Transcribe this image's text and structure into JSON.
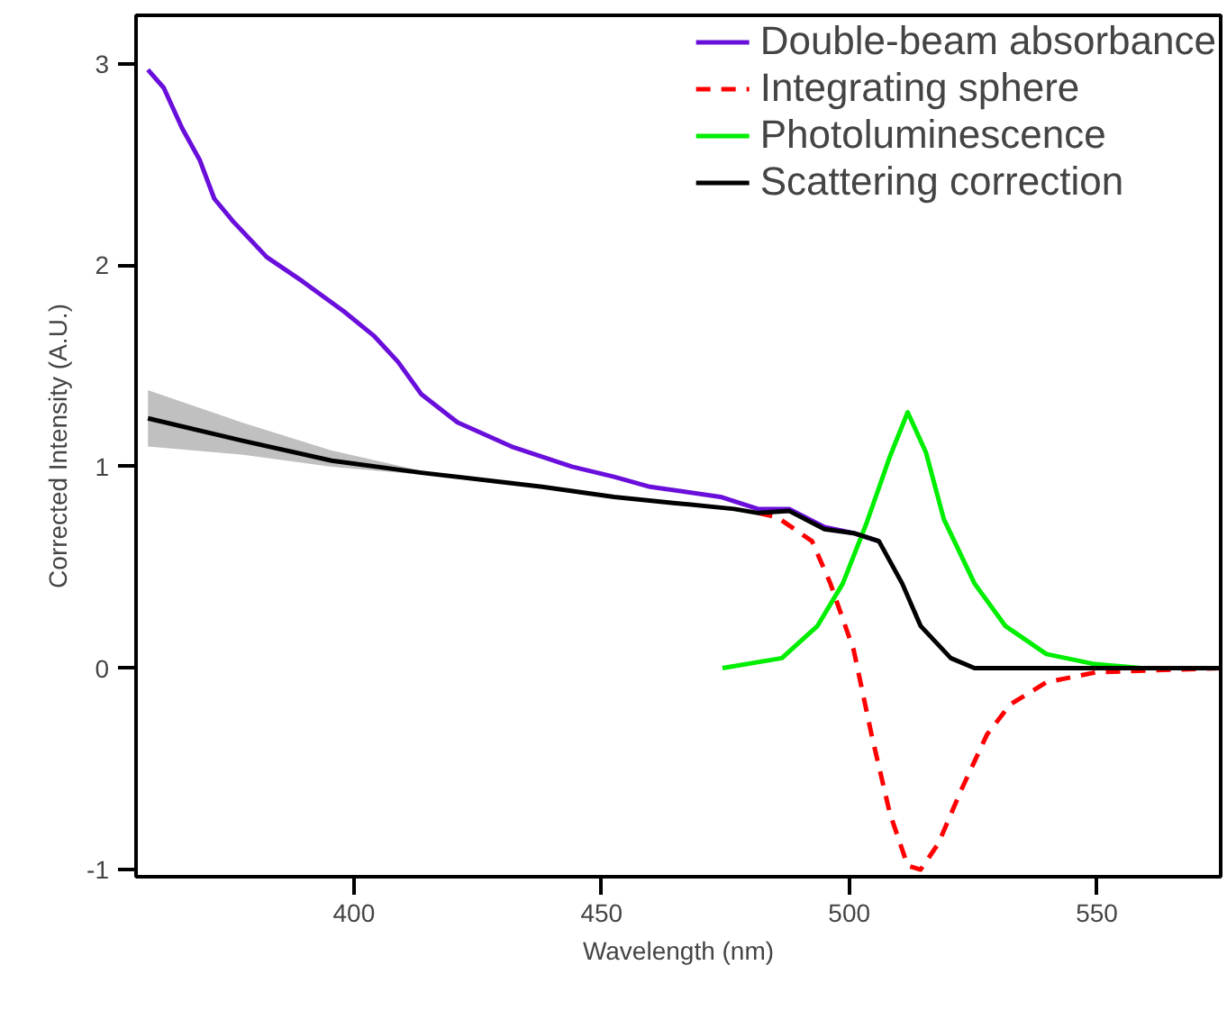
{
  "chart_data": {
    "type": "line",
    "xlabel": "Wavelength (nm)",
    "ylabel": "Corrected Intensity (A.U.)",
    "xlim": [
      356,
      575
    ],
    "ylim": [
      -1.035,
      3.24
    ],
    "xticks": [
      400,
      450,
      500,
      550
    ],
    "yticks": [
      -1,
      0,
      1,
      2,
      3
    ],
    "grid": false,
    "legend": "top right",
    "marker": "none",
    "series": [
      {
        "name": "Double-beam absorbance",
        "color": "#6a0fdb",
        "line_style": "solid",
        "x": [
          358.4,
          361.6,
          365.3,
          368.9,
          371.8,
          375.5,
          382.4,
          389.6,
          398,
          404,
          408.9,
          413.6,
          420.9,
          431.8,
          444,
          452.5,
          459.8,
          474,
          481.6,
          487.9,
          495,
          500.9,
          506
        ],
        "values": [
          2.97,
          2.88,
          2.68,
          2.52,
          2.33,
          2.22,
          2.04,
          1.92,
          1.77,
          1.65,
          1.52,
          1.36,
          1.22,
          1.1,
          1.0,
          0.95,
          0.9,
          0.85,
          0.79,
          0.79,
          0.7,
          0.67,
          0.63
        ]
      },
      {
        "name": "Integrating sphere",
        "color": "#ff0000",
        "line_style": "dashed",
        "x": [
          481.6,
          485.4,
          492.5,
          496.2,
          500.9,
          504.5,
          508.2,
          511.8,
          514.4,
          518,
          522.7,
          527.8,
          532.5,
          539.8,
          550,
          575
        ],
        "values": [
          0.77,
          0.75,
          0.63,
          0.42,
          0.09,
          -0.33,
          -0.72,
          -0.98,
          -1.0,
          -0.87,
          -0.6,
          -0.33,
          -0.18,
          -0.07,
          -0.02,
          0
        ]
      },
      {
        "name": "Photoluminescence",
        "color": "#00ee00",
        "line_style": "solid",
        "x": [
          474.4,
          486.4,
          493.6,
          498.7,
          503.5,
          508.2,
          511.8,
          515.5,
          519.1,
          525.3,
          531.5,
          539.8,
          549.6,
          559
        ],
        "values": [
          0,
          0.05,
          0.21,
          0.42,
          0.72,
          1.05,
          1.27,
          1.07,
          0.74,
          0.42,
          0.21,
          0.07,
          0.02,
          0
        ]
      },
      {
        "name": "Scattering correction",
        "color": "#000000",
        "line_style": "solid",
        "x": [
          358.4,
          377.3,
          395.5,
          413.6,
          438,
          452.5,
          464.5,
          476.8,
          481.6,
          487.9,
          495,
          500.9,
          506,
          510.7,
          514.4,
          520.5,
          525.3,
          575
        ],
        "values": [
          1.24,
          1.13,
          1.03,
          0.97,
          0.9,
          0.85,
          0.82,
          0.79,
          0.77,
          0.78,
          0.69,
          0.67,
          0.63,
          0.42,
          0.21,
          0.05,
          0,
          0
        ],
        "lower": [
          1.1,
          1.06,
          1.0,
          0.96,
          null,
          null,
          null,
          null,
          null,
          null,
          null,
          null,
          null,
          null,
          null,
          null,
          null,
          null
        ],
        "upper": [
          1.38,
          1.22,
          1.08,
          0.98,
          null,
          null,
          null,
          null,
          null,
          null,
          null,
          null,
          null,
          null,
          null,
          null,
          null,
          null
        ]
      }
    ]
  }
}
